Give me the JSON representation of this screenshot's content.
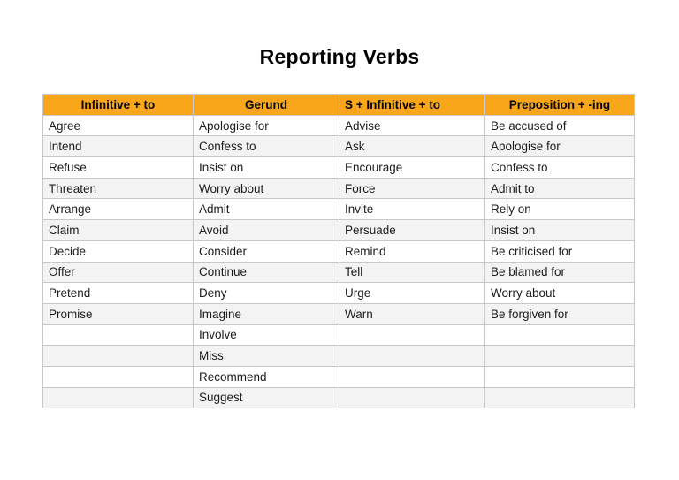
{
  "page": {
    "title": "Reporting Verbs"
  },
  "table": {
    "columns": [
      "Infinitive + to",
      "Gerund",
      "S + Infinitive + to",
      "Preposition + -ing"
    ],
    "rows": [
      [
        "Agree",
        "Apologise for",
        "Advise",
        "Be accused of"
      ],
      [
        "Intend",
        "Confess to",
        "Ask",
        "Apologise for"
      ],
      [
        "Refuse",
        "Insist on",
        "Encourage",
        "Confess to"
      ],
      [
        "Threaten",
        "Worry about",
        "Force",
        "Admit to"
      ],
      [
        "Arrange",
        "Admit",
        "Invite",
        "Rely on"
      ],
      [
        "Claim",
        "Avoid",
        "Persuade",
        "Insist on"
      ],
      [
        "Decide",
        "Consider",
        "Remind",
        "Be criticised for"
      ],
      [
        "Offer",
        "Continue",
        "Tell",
        "Be blamed for"
      ],
      [
        "Pretend",
        "Deny",
        "Urge",
        "Worry about"
      ],
      [
        "Promise",
        "Imagine",
        "Warn",
        "Be forgiven for"
      ],
      [
        "",
        "Involve",
        "",
        ""
      ],
      [
        "",
        "Miss",
        "",
        ""
      ],
      [
        "",
        "Recommend",
        "",
        ""
      ],
      [
        "",
        "Suggest",
        "",
        ""
      ]
    ]
  },
  "colors": {
    "header_bg": "#F9A61B",
    "alt_row_bg": "#F3F3F3",
    "border": "#C8C8C8",
    "cell_text": "#1C1C1C",
    "header_text": "#000000",
    "page_bg": "#FFFFFF"
  }
}
